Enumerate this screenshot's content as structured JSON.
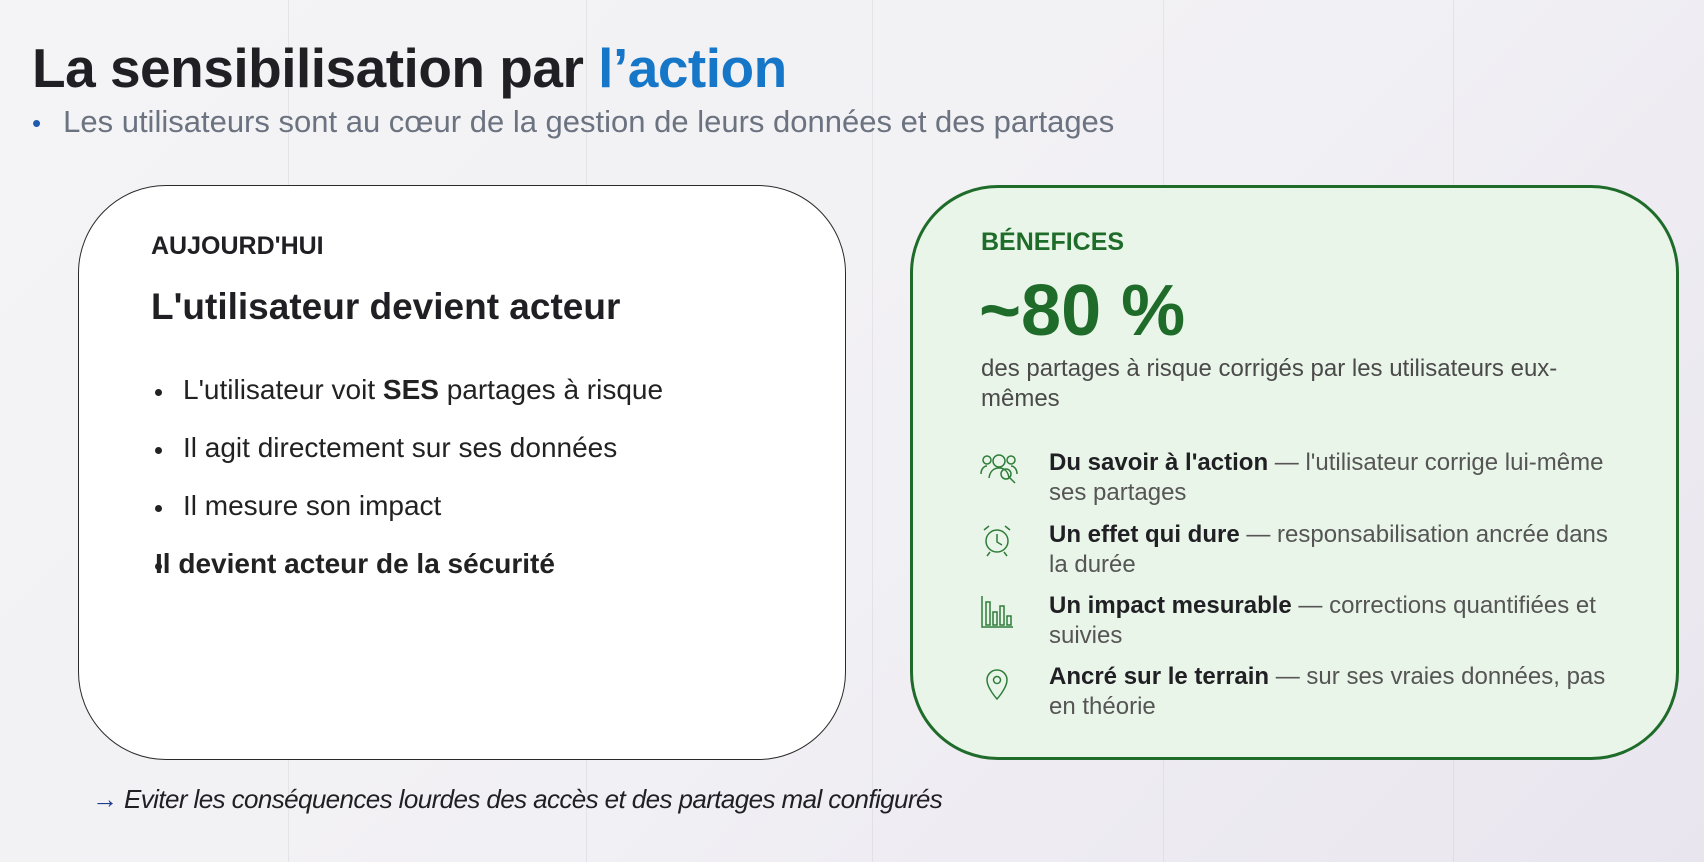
{
  "header": {
    "title": "La sensibilisation par",
    "title_accent": "l’action",
    "subtitle": "Les utilisateurs sont au cœur de la gestion de leurs données et des partages"
  },
  "left_card": {
    "label": "AUJOURD'HUI",
    "heading": "L'utilisateur devient acteur",
    "bullets": [
      {
        "parts": [
          "L'utilisateur voit",
          "SES",
          "partages à risque"
        ]
      },
      {
        "parts": [
          "Il agit directement sur ses données"
        ]
      },
      {
        "parts": [
          "Il mesure son impact"
        ]
      },
      {
        "parts": [
          "Il devient acteur de la sécurité"
        ]
      }
    ]
  },
  "right_card": {
    "label": "BÉNEFICES",
    "stat": "~80 %",
    "stat_description": "des partages à risque corrigés par les utilisateurs eux-mêmes",
    "benefits": [
      {
        "title": "Du savoir à l'action",
        "text": "— l'utilisateur corrige lui-même ses partages"
      },
      {
        "title": "Un effet qui dure",
        "text": "— responsabilisation ancrée dans la durée"
      },
      {
        "title": "Un impact mesurable",
        "text": "— corrections quantifiées et suivies"
      },
      {
        "title": "Ancré sur le terrain",
        "text": "— sur ses vraies données, pas en théorie"
      }
    ]
  },
  "footer": {
    "arrow": "→",
    "text": "Eviter les conséquences lourdes des accès et des partages mal configurés"
  }
}
